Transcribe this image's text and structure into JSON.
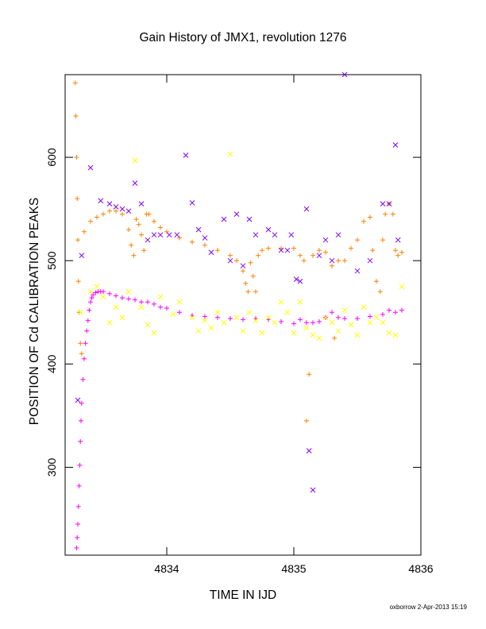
{
  "chart_data": {
    "type": "scatter",
    "title": "Gain History of JMX1, revolution 1276",
    "xlabel": "TIME IN IJD",
    "ylabel": "POSITION OF Cd CALIBRATION PEAKS",
    "xlim": [
      4833.2,
      4836.0
    ],
    "ylim": [
      215,
      680
    ],
    "x_ticks": [
      4834,
      4835,
      4836
    ],
    "y_ticks": [
      300,
      400,
      500,
      600
    ],
    "grid": false,
    "series": [
      {
        "color": "#ff00ff",
        "marker": "plus",
        "x": [
          4833.29,
          4833.295,
          4833.3,
          4833.305,
          4833.31,
          4833.315,
          4833.32,
          4833.325,
          4833.33,
          4833.34,
          4833.35,
          4833.36,
          4833.37,
          4833.38,
          4833.39,
          4833.4,
          4833.41,
          4833.42,
          4833.44,
          4833.46,
          4833.48,
          4833.5,
          4833.55,
          4833.6,
          4833.65,
          4833.7,
          4833.75,
          4833.8,
          4833.85,
          4833.9,
          4833.95,
          4834.0,
          4834.1,
          4834.2,
          4834.3,
          4834.4,
          4834.5,
          4834.6,
          4834.7,
          4834.8,
          4834.9,
          4835.0,
          4835.05,
          4835.1,
          4835.15,
          4835.2,
          4835.25,
          4835.3,
          4835.35,
          4835.4,
          4835.5,
          4835.6,
          4835.7,
          4835.75,
          4835.8,
          4835.85
        ],
        "y": [
          222,
          232,
          245,
          262,
          282,
          302,
          325,
          345,
          362,
          385,
          405,
          420,
          432,
          442,
          452,
          460,
          464,
          467,
          469,
          470,
          470,
          470,
          468,
          466,
          464,
          463,
          462,
          460,
          460,
          458,
          455,
          454,
          450,
          447,
          446,
          445,
          444,
          443,
          444,
          443,
          441,
          439,
          443,
          440,
          440,
          441,
          445,
          450,
          445,
          444,
          444,
          446,
          448,
          452,
          450,
          452
        ]
      },
      {
        "color": "#ff8000",
        "marker": "plus",
        "x": [
          4833.28,
          4833.285,
          4833.29,
          4833.295,
          4833.3,
          4833.305,
          4833.31,
          4833.32,
          4833.33,
          4833.35,
          4833.4,
          4833.45,
          4833.5,
          4833.55,
          4833.6,
          4833.65,
          4833.7,
          4833.72,
          4833.74,
          4833.76,
          4833.78,
          4833.8,
          4833.82,
          4833.84,
          4833.86,
          4833.9,
          4833.95,
          4834.0,
          4834.1,
          4834.2,
          4834.3,
          4834.4,
          4834.5,
          4834.55,
          4834.6,
          4834.62,
          4834.64,
          4834.66,
          4834.68,
          4834.7,
          4834.72,
          4834.75,
          4834.8,
          4834.9,
          4835.0,
          4835.05,
          4835.08,
          4835.1,
          4835.12,
          4835.15,
          4835.2,
          4835.25,
          4835.3,
          4835.32,
          4835.35,
          4835.4,
          4835.45,
          4835.5,
          4835.55,
          4835.6,
          4835.62,
          4835.65,
          4835.68,
          4835.7,
          4835.72,
          4835.75,
          4835.78,
          4835.8,
          4835.82,
          4835.85
        ],
        "y": [
          672,
          640,
          600,
          560,
          520,
          480,
          450,
          420,
          410,
          528,
          538,
          542,
          545,
          548,
          548,
          545,
          530,
          515,
          505,
          540,
          535,
          525,
          510,
          545,
          545,
          538,
          532,
          528,
          522,
          518,
          515,
          510,
          505,
          500,
          490,
          478,
          470,
          498,
          485,
          470,
          505,
          510,
          512,
          512,
          512,
          505,
          500,
          345,
          390,
          505,
          510,
          508,
          495,
          425,
          500,
          500,
          512,
          520,
          538,
          542,
          510,
          480,
          470,
          520,
          545,
          555,
          545,
          510,
          505,
          508
        ]
      },
      {
        "color": "#7f00ff",
        "marker": "x",
        "x": [
          4833.3,
          4833.33,
          4833.4,
          4833.48,
          4833.55,
          4833.6,
          4833.65,
          4833.7,
          4833.75,
          4833.8,
          4833.85,
          4833.9,
          4833.95,
          4834.02,
          4834.08,
          4834.15,
          4834.2,
          4834.25,
          4834.3,
          4834.35,
          4834.45,
          4834.5,
          4834.55,
          4834.6,
          4834.65,
          4834.7,
          4834.8,
          4834.85,
          4834.9,
          4834.95,
          4834.98,
          4835.02,
          4835.05,
          4835.1,
          4835.12,
          4835.15,
          4835.2,
          4835.25,
          4835.3,
          4835.35,
          4835.4,
          4835.5,
          4835.6,
          4835.7,
          4835.75,
          4835.8,
          4835.82
        ],
        "y": [
          365,
          505,
          590,
          558,
          555,
          552,
          550,
          548,
          575,
          555,
          520,
          525,
          525,
          525,
          525,
          602,
          556,
          530,
          522,
          508,
          540,
          500,
          545,
          495,
          540,
          525,
          530,
          525,
          510,
          510,
          525,
          482,
          480,
          550,
          316,
          278,
          505,
          520,
          500,
          525,
          680,
          490,
          500,
          555,
          555,
          612,
          520
        ]
      },
      {
        "color": "#ffff00",
        "marker": "x",
        "x": [
          4833.32,
          4833.4,
          4833.45,
          4833.5,
          4833.55,
          4833.6,
          4833.65,
          4833.7,
          4833.75,
          4833.8,
          4833.85,
          4833.9,
          4833.95,
          4834.05,
          4834.1,
          4834.2,
          4834.25,
          4834.3,
          4834.35,
          4834.4,
          4834.45,
          4834.5,
          4834.55,
          4834.6,
          4834.65,
          4834.7,
          4834.75,
          4834.8,
          4834.85,
          4834.9,
          4834.95,
          4835.0,
          4835.05,
          4835.1,
          4835.15,
          4835.2,
          4835.25,
          4835.3,
          4835.35,
          4835.4,
          4835.45,
          4835.5,
          4835.55,
          4835.6,
          4835.65,
          4835.7,
          4835.75,
          4835.8,
          4835.85
        ],
        "y": [
          450,
          470,
          475,
          465,
          440,
          455,
          445,
          470,
          597,
          455,
          438,
          430,
          465,
          448,
          460,
          445,
          432,
          442,
          435,
          450,
          440,
          603,
          445,
          432,
          450,
          442,
          430,
          445,
          440,
          460,
          450,
          430,
          460,
          435,
          428,
          425,
          445,
          440,
          432,
          452,
          438,
          428,
          455,
          440,
          445,
          440,
          430,
          428,
          475
        ]
      }
    ],
    "footer": "oxborrow  2-Apr-2013 15:19"
  }
}
